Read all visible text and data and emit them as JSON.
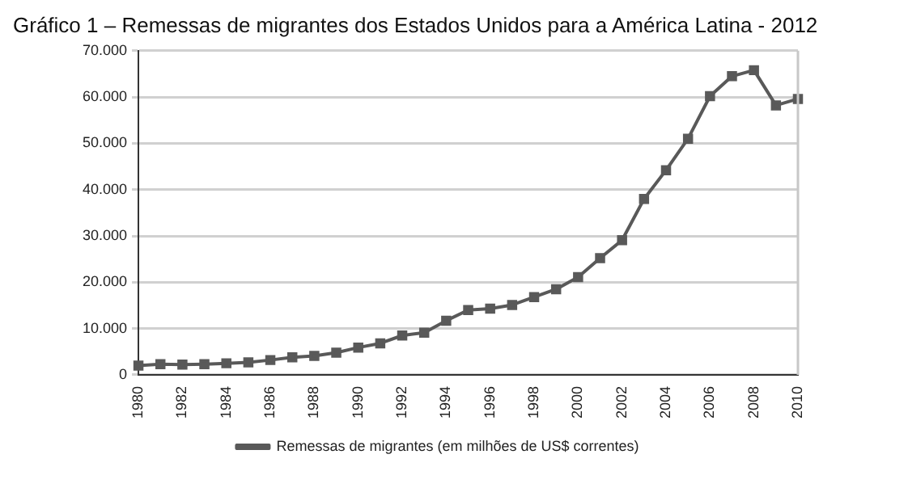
{
  "chart_data": {
    "type": "line",
    "title": "Gráfico 1 – Remessas de migrantes dos Estados Unidos para a América Latina - 2012",
    "categories": [
      "1980",
      null,
      "1982",
      null,
      "1984",
      null,
      "1986",
      null,
      "1988",
      null,
      "1990",
      null,
      "1992",
      null,
      "1994",
      null,
      "1996",
      null,
      "1998",
      null,
      "2000",
      null,
      "2002",
      null,
      "2004",
      null,
      "2006",
      null,
      "2008",
      null,
      "2010"
    ],
    "series": [
      {
        "name": "Remessas de migrantes (em milhões de US$ correntes)",
        "color": "#595959",
        "values": [
          2000,
          2300,
          2200,
          2300,
          2500,
          2700,
          3200,
          3800,
          4100,
          4800,
          5900,
          6800,
          8500,
          9100,
          11700,
          14000,
          14300,
          15100,
          16800,
          18500,
          21100,
          25200,
          29100,
          38000,
          44200,
          51000,
          60200,
          64500,
          65800,
          58200,
          59600
        ]
      }
    ],
    "ylim": [
      0,
      70000
    ],
    "yticks": [
      {
        "value": 0,
        "label": "0"
      },
      {
        "value": 10000,
        "label": "10.000"
      },
      {
        "value": 20000,
        "label": "20.000"
      },
      {
        "value": 30000,
        "label": "30.000"
      },
      {
        "value": 40000,
        "label": "40.000"
      },
      {
        "value": 50000,
        "label": "50.000"
      },
      {
        "value": 60000,
        "label": "60.000"
      },
      {
        "value": 70000,
        "label": "70.000"
      }
    ],
    "grid": "y",
    "legend": "bottom",
    "marker": "square",
    "line_style": "solid"
  }
}
